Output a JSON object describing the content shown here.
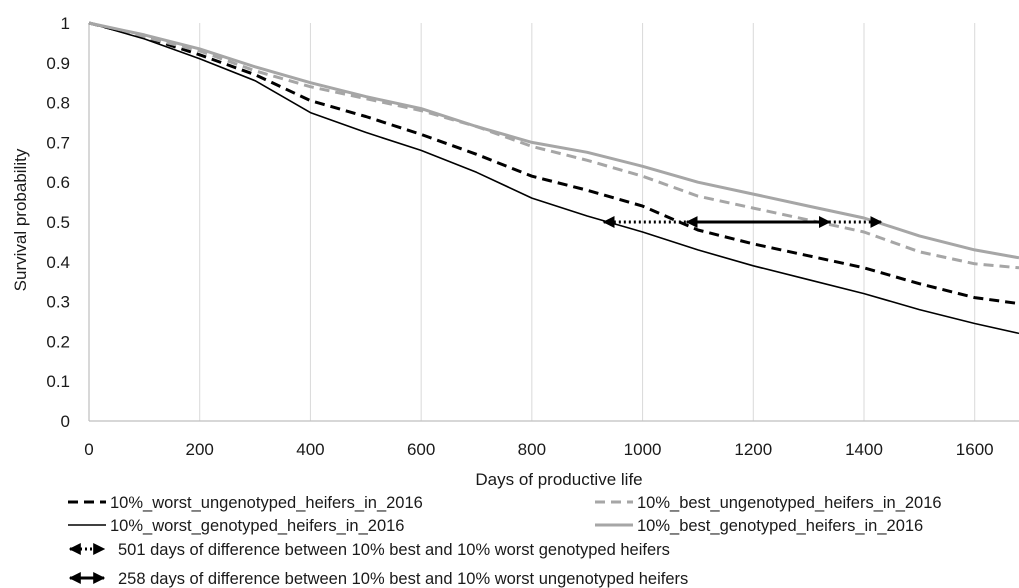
{
  "chart_data": {
    "type": "line",
    "title": "",
    "xlabel": "Days of productive life",
    "ylabel": "Survival probability",
    "xlim": [
      0,
      1680
    ],
    "ylim": [
      0,
      1
    ],
    "x_ticks": [
      0,
      200,
      400,
      600,
      800,
      1000,
      1200,
      1400,
      1600
    ],
    "y_ticks": [
      0,
      0.1,
      0.2,
      0.3,
      0.4,
      0.5,
      0.6,
      0.7,
      0.8,
      0.9,
      1
    ],
    "y_tick_labels": [
      "0",
      "0.1",
      "0.2",
      "0.3",
      "0.4",
      "0.5",
      "0.6",
      "0.7",
      "0.8",
      "0.9",
      "1"
    ],
    "grid": "vertical",
    "legend_position": "bottom",
    "series": [
      {
        "name": "10%_worst_ungenotyped_heifers_in_2016",
        "color": "#000000",
        "style": "dashed-black",
        "x": [
          0,
          100,
          200,
          300,
          400,
          500,
          600,
          700,
          800,
          900,
          1000,
          1100,
          1200,
          1300,
          1400,
          1500,
          1600,
          1680
        ],
        "y": [
          1.0,
          0.965,
          0.92,
          0.87,
          0.805,
          0.765,
          0.72,
          0.67,
          0.615,
          0.58,
          0.54,
          0.48,
          0.445,
          0.415,
          0.385,
          0.345,
          0.31,
          0.295
        ]
      },
      {
        "name": "10%_best_ungenotyped_heifers_in_2016",
        "color": "#a6a6a6",
        "style": "dashed-grey",
        "x": [
          0,
          100,
          200,
          300,
          400,
          500,
          600,
          700,
          800,
          900,
          1000,
          1100,
          1200,
          1300,
          1400,
          1500,
          1600,
          1680
        ],
        "y": [
          1.0,
          0.965,
          0.93,
          0.88,
          0.84,
          0.81,
          0.78,
          0.74,
          0.69,
          0.655,
          0.615,
          0.565,
          0.535,
          0.505,
          0.475,
          0.425,
          0.395,
          0.385
        ]
      },
      {
        "name": "10%_worst_genotyped_heifers_in_2016",
        "color": "#000000",
        "style": "solid-black",
        "x": [
          0,
          100,
          200,
          300,
          400,
          500,
          600,
          700,
          800,
          900,
          1000,
          1100,
          1200,
          1300,
          1400,
          1500,
          1600,
          1680
        ],
        "y": [
          1.0,
          0.96,
          0.91,
          0.855,
          0.775,
          0.725,
          0.68,
          0.625,
          0.56,
          0.515,
          0.475,
          0.43,
          0.39,
          0.355,
          0.32,
          0.28,
          0.245,
          0.22
        ]
      },
      {
        "name": "10%_best_genotyped_heifers_in_2016",
        "color": "#a6a6a6",
        "style": "solid-grey",
        "x": [
          0,
          100,
          200,
          300,
          400,
          500,
          600,
          700,
          800,
          900,
          1000,
          1100,
          1200,
          1300,
          1400,
          1500,
          1600,
          1680
        ],
        "y": [
          1.0,
          0.97,
          0.935,
          0.89,
          0.85,
          0.815,
          0.785,
          0.74,
          0.7,
          0.675,
          0.64,
          0.6,
          0.57,
          0.54,
          0.51,
          0.465,
          0.43,
          0.41
        ]
      }
    ],
    "annotations": [
      {
        "label": "501 days of difference between 10% best and 10% worst genotyped heifers",
        "style": "dotted-double-arrow",
        "x_start": 930,
        "x_end": 1431,
        "y": 0.5
      },
      {
        "label": "258 days of difference between 10% best and 10% worst ungenotyped heifers",
        "style": "solid-double-arrow",
        "x_start": 1080,
        "x_end": 1338,
        "y": 0.5
      }
    ]
  }
}
